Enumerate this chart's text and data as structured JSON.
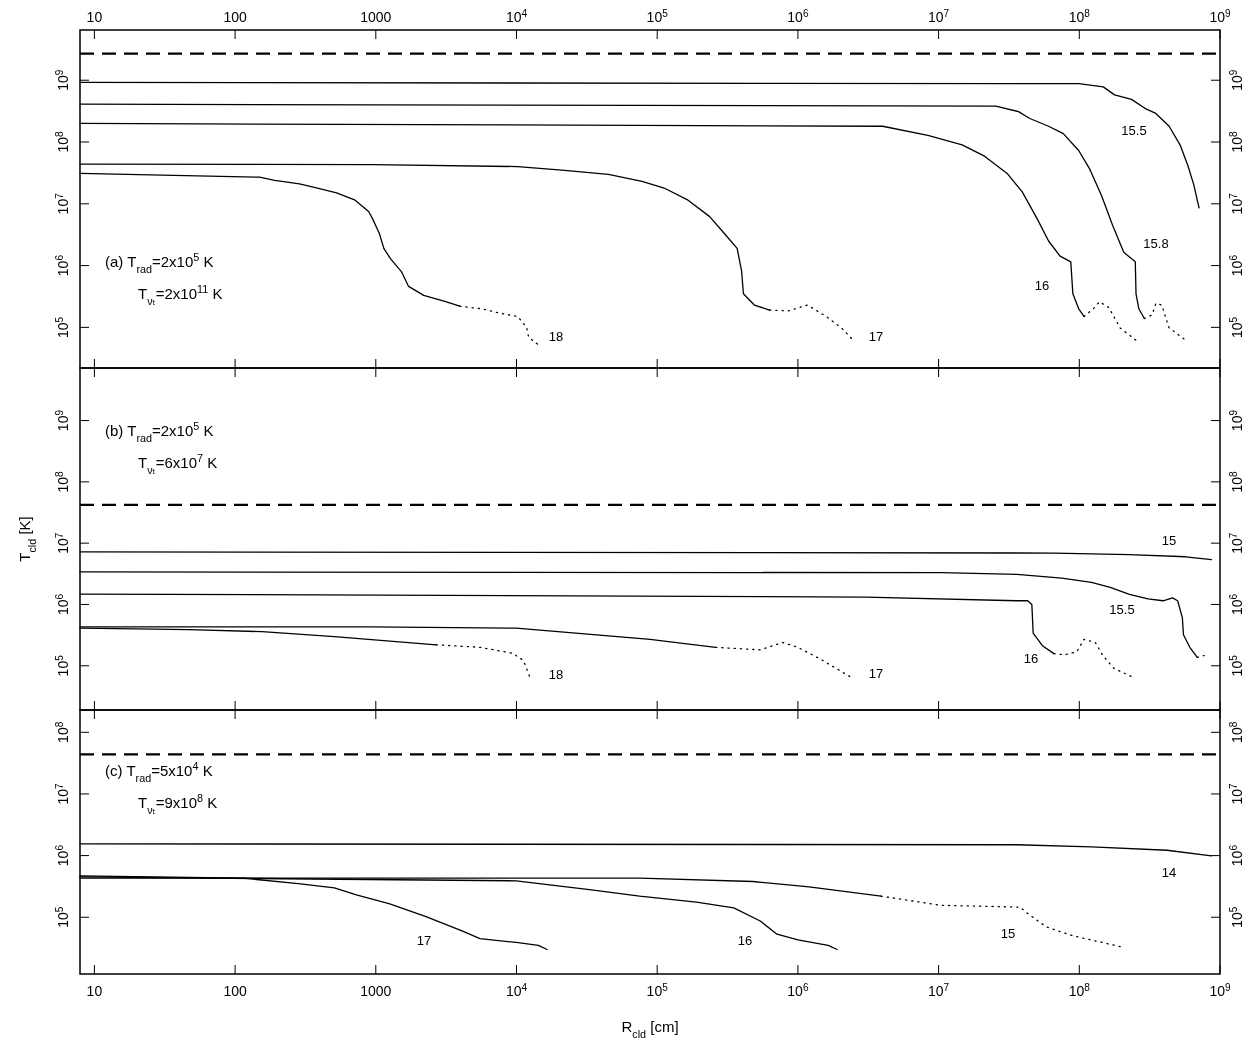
{
  "chart_data": [
    {
      "type": "line",
      "log": "xy",
      "xlim": [
        7.9,
        1000000000
      ],
      "xticks": [
        10,
        100,
        1000,
        {
          "value": 10000,
          "label": "10$^{4}$"
        },
        {
          "value": 100000,
          "label": "10$^{5}$"
        },
        {
          "value": 1000000,
          "label": "10$^{6}$"
        },
        {
          "value": 10000000,
          "label": "10$^{7}$"
        },
        {
          "value": 100000000,
          "label": "10$^{8}$"
        },
        {
          "value": 1000000000,
          "label": "10$^{9}$"
        }
      ],
      "ylim": [
        22000,
        6500000000
      ],
      "yticks": [
        {
          "value": 100000,
          "label": "10$^{5}$"
        },
        {
          "value": 1000000,
          "label": "10$^{6}$"
        },
        {
          "value": 10000000,
          "label": "10$^{7}$"
        },
        {
          "value": 100000000,
          "label": "10$^{8}$"
        },
        {
          "value": 1000000000,
          "label": "10$^{9}$"
        }
      ],
      "ref_lines": [
        {
          "axis": "y",
          "value": 2700000000,
          "line_style": "dashed",
          "color": "#000000"
        }
      ],
      "series": [
        {
          "color": "#000000",
          "line_style": "solid",
          "x": [
            7.9,
            149,
            191,
            287,
            385,
            526,
            706,
            889,
            949,
            1060,
            1140,
            1270,
            1520,
            1710,
            2190,
            3140,
            3950
          ],
          "values": [
            31000000.0,
            27000000.0,
            24000000.0,
            21000000.0,
            18000000.0,
            15000000.0,
            11600000.0,
            7500000.0,
            5700000.0,
            3300000.0,
            1900000.0,
            1300000.0,
            800000.0,
            460000.0,
            330000.0,
            260000.0,
            220000.0
          ]
        },
        {
          "name": "18",
          "color": "#000000",
          "line_style": "dotted",
          "x": [
            3950,
            5650,
            7590,
            10200,
            11800,
            12200,
            14200
          ],
          "values": [
            220000.0,
            200000.0,
            170000.0,
            150000.0,
            100000.0,
            69000.0,
            53000.0
          ]
        },
        {
          "color": "#000000",
          "line_style": "solid",
          "x": [
            7.9,
            949,
            10200,
            21000,
            45000,
            78000,
            112000,
            163000,
            236000,
            300000,
            370000,
            398000,
            410000,
            490000,
            630000
          ],
          "values": [
            44000000.0,
            43000000.0,
            40000000.0,
            35000000.0,
            30000000.0,
            23000000.0,
            18000000.0,
            11700000.0,
            6200000.0,
            3300000.0,
            1900000.0,
            810000.0,
            350000.0,
            230000.0,
            190000.0
          ]
        },
        {
          "name": "17",
          "color": "#000000",
          "line_style": "dotted",
          "x": [
            630000,
            860000,
            1170000,
            1590000,
            2040000,
            2500000
          ],
          "values": [
            190000.0,
            185000.0,
            230000.0,
            150000.0,
            98000.0,
            60000.0
          ]
        },
        {
          "name": "16",
          "color": "#000000",
          "line_style": "solid",
          "x": [
            7.9,
            4000000.0,
            8400000.0,
            14700000.0,
            21200000.0,
            30700000.0,
            39300000.0,
            50000000.0,
            60500000.0,
            73000000.0,
            87000000.0,
            90000000.0,
            99000000.0,
            108000000.0
          ],
          "values": [
            200000000.0,
            180000000.0,
            128000000.0,
            90000000.0,
            59000000.0,
            31000000.0,
            15600000.0,
            5800000.0,
            2500000.0,
            1420000.0,
            1150000.0,
            350000.0,
            200000.0,
            150000.0
          ]
        },
        {
          "color": "#000000",
          "line_style": "dotted",
          "x": [
            108000000.0,
            126000000.0,
            139000000.0,
            162000000.0,
            195000000.0,
            257000000.0
          ],
          "values": [
            150000.0,
            200000.0,
            260000.0,
            210000.0,
            98000.0,
            60000.0
          ]
        },
        {
          "name": "15.8",
          "color": "#000000",
          "line_style": "solid",
          "x": [
            7.9,
            25500000.0,
            37000000.0,
            44500000.0,
            60500000.0,
            77000000.0,
            99000000.0,
            119000000.0,
            144000000.0,
            173000000.0,
            207000000.0,
            250000000.0,
            253000000.0,
            265000000.0,
            290000000.0
          ],
          "values": [
            410000000.0,
            380000000.0,
            310000000.0,
            240000000.0,
            180000000.0,
            137000000.0,
            73000000.0,
            36000000.0,
            13500000.0,
            4400000.0,
            1640000.0,
            1150000.0,
            350000.0,
            200000.0,
            139000.0
          ]
        },
        {
          "color": "#000000",
          "line_style": "dotted",
          "x": [
            290000000.0,
            330000000.0,
            350000000.0,
            385000000.0,
            435000000.0,
            560000000.0
          ],
          "values": [
            139000.0,
            160000.0,
            245000.0,
            230000.0,
            98000.0,
            64000.0
          ]
        },
        {
          "name": "15.5",
          "color": "#000000",
          "line_style": "solid",
          "x": [
            7.9,
            99000000.0,
            148000000.0,
            178000000.0,
            235000000.0,
            300000000.0,
            350000000.0,
            435000000.0,
            520000000.0,
            590000000.0,
            650000000.0,
            710000000.0
          ],
          "values": [
            920000000.0,
            880000000.0,
            780000000.0,
            580000000.0,
            490000000.0,
            340000000.0,
            290000000.0,
            180000000.0,
            90000000.0,
            42000000.0,
            20600000.0,
            8600000.0
          ]
        }
      ],
      "annotations": [
        "(a) T$_{rad}$=2x10$^{5}$ K",
        "T$_{νₜ}$=2x10$^{11}$ K"
      ]
    },
    {
      "type": "line",
      "log": "xy",
      "tick_labels": "y",
      "ylabel": "T$_{cld}$ [K]",
      "xlim": [
        7.9,
        1000000000
      ],
      "xticks": [
        10,
        100,
        1000,
        10000,
        100000,
        1000000,
        10000000,
        100000000,
        1000000000
      ],
      "ylim": [
        19000,
        7200000000
      ],
      "yticks": [
        {
          "value": 100000,
          "label": "10$^{5}$"
        },
        {
          "value": 1000000,
          "label": "10$^{6}$"
        },
        {
          "value": 10000000,
          "label": "10$^{7}$"
        },
        {
          "value": 100000000,
          "label": "10$^{8}$"
        },
        {
          "value": 1000000000,
          "label": "10$^{9}$"
        }
      ],
      "ref_lines": [
        {
          "axis": "y",
          "value": 42000000,
          "line_style": "dashed",
          "color": "#000000"
        }
      ],
      "series": [
        {
          "name": "15",
          "color": "#000000",
          "line_style": "solid",
          "x": [
            7.9,
            66000000.0,
            227000000.0,
            570000000.0,
            870000000.0
          ],
          "values": [
            7200000.0,
            6900000.0,
            6500000.0,
            6000000.0,
            5400000.0
          ]
        },
        {
          "name": "15.5",
          "color": "#000000",
          "line_style": "solid",
          "x": [
            7.9,
            10400000.0,
            36000000.0,
            75000000.0,
            122000000.0,
            166000000.0,
            227000000.0,
            308000000.0,
            394000000.0,
            460000000.0,
            500000000.0,
            540000000.0,
            550000000.0,
            610000000.0,
            690000000.0
          ],
          "values": [
            3400000.0,
            3300000.0,
            3100000.0,
            2700000.0,
            2300000.0,
            1900000.0,
            1460000.0,
            1230000.0,
            1150000.0,
            1280000.0,
            1150000.0,
            610000.0,
            320000.0,
            200000.0,
            137000.0
          ]
        },
        {
          "color": "#000000",
          "line_style": "dotted",
          "x": [
            690000000.0,
            770000000.0
          ],
          "values": [
            137000.0,
            147000.0
          ]
        },
        {
          "name": "16",
          "color": "#000000",
          "line_style": "solid",
          "x": [
            7.9,
            3030000.0,
            36000000.0,
            43000000.0,
            46000000.0,
            47000000.0,
            55000000.0,
            66000000.0
          ],
          "values": [
            1480000.0,
            1320000.0,
            1150000.0,
            1150000.0,
            1000000.0,
            340000.0,
            210000.0,
            158000.0
          ]
        },
        {
          "color": "#000000",
          "line_style": "dotted",
          "x": [
            66000000.0,
            79000000.0,
            96000000.0,
            108000000.0,
            130000000.0,
            147000000.0,
            177000000.0,
            248000000.0
          ],
          "values": [
            158000.0,
            151000.0,
            169000.0,
            270000.0,
            240000.0,
            147000.0,
            90000.0,
            63000.0
          ]
        },
        {
          "color": "#000000",
          "line_style": "solid",
          "x": [
            7.9,
            920,
            9950,
            89000,
            260000
          ],
          "values": [
            430000.0,
            430000.0,
            410000.0,
            270000.0,
            200000.0
          ]
        },
        {
          "name": "17",
          "color": "#000000",
          "line_style": "dotted",
          "x": [
            260000,
            540000,
            780000,
            1000000,
            1450000,
            2440000
          ],
          "values": [
            200000.0,
            182000.0,
            240000.0,
            200000.0,
            128000.0,
            63000.0
          ]
        },
        {
          "color": "#000000",
          "line_style": "solid",
          "x": [
            7.9,
            47,
            155,
            508,
            2690
          ],
          "values": [
            410000.0,
            390000.0,
            360000.0,
            300000.0,
            220000.0
          ]
        },
        {
          "name": "18",
          "color": "#000000",
          "line_style": "dotted",
          "x": [
            2690,
            5500,
            9400,
            11200,
            12300,
            12400
          ],
          "values": [
            220000.0,
            200000.0,
            160000.0,
            122000.0,
            71000.0,
            62000.0
          ]
        }
      ],
      "annotations": [
        "(b) T$_{rad}$=2x10$^{5}$ K",
        "T$_{νₜ}$=6x10$^{7}$ K"
      ]
    },
    {
      "type": "line",
      "log": "xy",
      "xlabel": "R$_{cld}$ [cm]",
      "xlim": [
        7.9,
        1000000000
      ],
      "xticks": [
        10,
        100,
        1000,
        {
          "value": 10000,
          "label": "10$^{4}$"
        },
        {
          "value": 100000,
          "label": "10$^{5}$"
        },
        {
          "value": 1000000,
          "label": "10$^{6}$"
        },
        {
          "value": 10000000,
          "label": "10$^{7}$"
        },
        {
          "value": 100000000,
          "label": "10$^{8}$"
        },
        {
          "value": 1000000000,
          "label": "10$^{9}$"
        }
      ],
      "ylim": [
        12000,
        230000000
      ],
      "yticks": [
        {
          "value": 100000,
          "label": "10$^{5}$"
        },
        {
          "value": 1000000,
          "label": "10$^{6}$"
        },
        {
          "value": 10000000,
          "label": "10$^{7}$"
        },
        {
          "value": 100000000,
          "label": "10$^{8}$"
        }
      ],
      "ref_lines": [
        {
          "axis": "y",
          "value": 44000000,
          "line_style": "dashed",
          "color": "#000000"
        }
      ],
      "series": [
        {
          "name": "14",
          "color": "#000000",
          "line_style": "solid",
          "x": [
            7.9,
            36000000.0,
            122000000.0,
            420000000.0,
            870000000.0
          ],
          "values": [
            1550000.0,
            1500000.0,
            1380000.0,
            1220000.0,
            990000.0
          ]
        },
        {
          "color": "#000000",
          "line_style": "solid",
          "x": [
            7.9,
            75000,
            480000,
            1200000,
            3900000
          ],
          "values": [
            430000.0,
            430000.0,
            380000.0,
            310000.0,
            220000.0
          ]
        },
        {
          "name": "15",
          "color": "#000000",
          "line_style": "dotted",
          "x": [
            3900000.0,
            10400000.0,
            38000000.0,
            43000000.0,
            58000000.0,
            90000000.0,
            200000000.0
          ],
          "values": [
            220000.0,
            156000.0,
            146000.0,
            115000.0,
            70000.0,
            50000.0,
            33000.0
          ]
        },
        {
          "name": "16",
          "color": "#000000",
          "line_style": "solid",
          "x": [
            7.9,
            9950,
            33000,
            75000,
            190000,
            350000,
            540000,
            710000,
            1000000,
            1640000,
            1900000
          ],
          "values": [
            450000.0,
            390000.0,
            280000.0,
            220000.0,
            176000.0,
            142000.0,
            87000.0,
            53000.0,
            43000.0,
            35000.0,
            30000.0
          ]
        },
        {
          "name": "17",
          "color": "#000000",
          "line_style": "solid",
          "x": [
            7.9,
            115,
            281,
            508,
            727,
            1240,
            2250,
            4100,
            5500,
            9950,
            14300,
            16500
          ],
          "values": [
            470000.0,
            430000.0,
            350000.0,
            300000.0,
            230000.0,
            166000.0,
            103000.0,
            60000.0,
            45000.0,
            39000.0,
            35000.0,
            30000.0
          ]
        }
      ],
      "annotations": [
        "(c) T$_{rad}$=5x10$^{4}$ K",
        "T$_{νₜ}$=9x10$^{8}$ K"
      ]
    }
  ]
}
